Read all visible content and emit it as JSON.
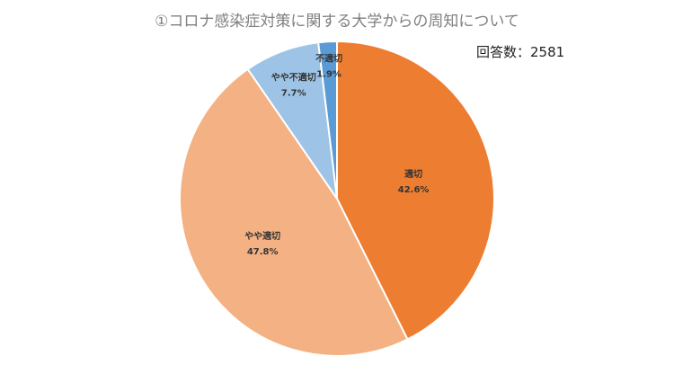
{
  "chart_data": {
    "type": "pie",
    "title": "①コロナ感染症対策に関する大学からの周知について",
    "annotation": "回答数：2581",
    "slices": [
      {
        "label": "適切",
        "value": 42.6,
        "value_label": "42.6%",
        "color": "#ED7D31"
      },
      {
        "label": "やや適切",
        "value": 47.8,
        "value_label": "47.8%",
        "color": "#F4B183"
      },
      {
        "label": "やや不適切",
        "value": 7.7,
        "value_label": "7.7%",
        "color": "#9DC3E6"
      },
      {
        "label": "不適切",
        "value": 1.9,
        "value_label": "1.9%",
        "color": "#5B9BD5"
      }
    ],
    "start_angle": "12 o'clock",
    "direction": "clockwise",
    "legend": "none"
  }
}
